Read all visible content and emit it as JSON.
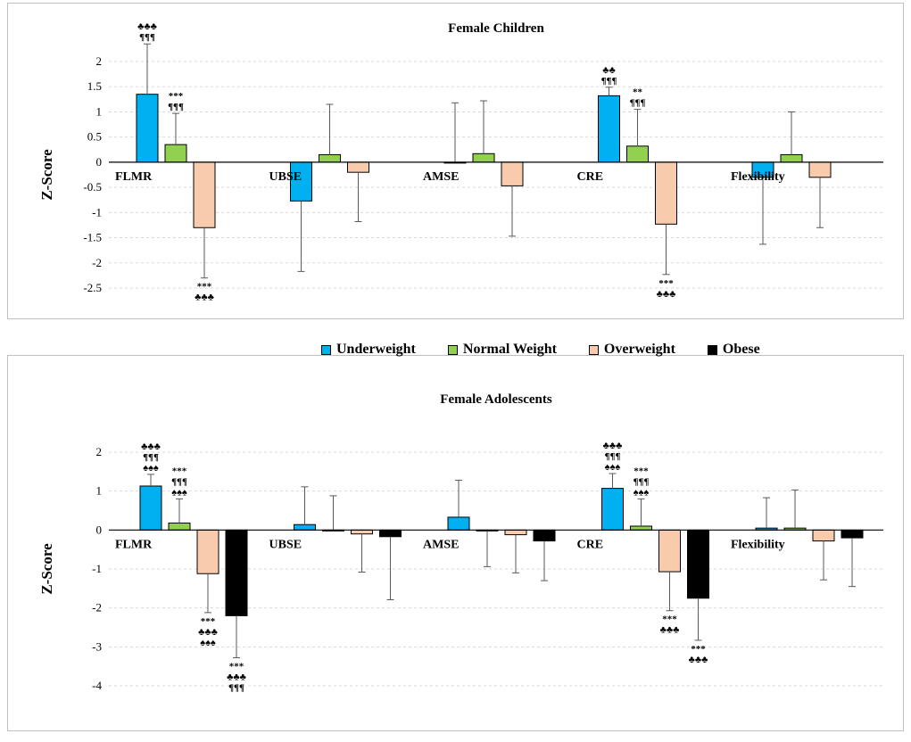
{
  "legend": [
    {
      "name": "Underweight",
      "color": "#00B0F0"
    },
    {
      "name": "Normal Weight",
      "color": "#92D050"
    },
    {
      "name": "Overweight",
      "color": "#F8CBAD"
    },
    {
      "name": "Obese",
      "color": "#000000"
    }
  ],
  "chart_data": [
    {
      "type": "bar",
      "title": "Female Children",
      "ylabel": "Z-Score",
      "xlabel": "",
      "ylim": [
        -2.5,
        2
      ],
      "ticks": [
        "2",
        "1.5",
        "1",
        "0.5",
        "0",
        "-0.5",
        "-1",
        "-1.5",
        "-2",
        "-2.5"
      ],
      "tick_values": [
        2,
        1.5,
        1,
        0.5,
        0,
        -0.5,
        -1,
        -1.5,
        -2,
        -2.5
      ],
      "categories": [
        "FLMR",
        "UBSE",
        "AMSE",
        "CRE",
        "Flexibility"
      ],
      "series": [
        {
          "name": "Underweight",
          "color": "#00B0F0",
          "values": [
            1.35,
            -0.77,
            0.0,
            1.32,
            -0.3
          ],
          "error": [
            1.0,
            1.4,
            1.18,
            0.17,
            1.33
          ]
        },
        {
          "name": "Normal Weight",
          "color": "#92D050",
          "values": [
            0.35,
            0.15,
            0.17,
            0.32,
            0.15
          ],
          "error": [
            0.62,
            1.0,
            1.05,
            0.73,
            0.85
          ]
        },
        {
          "name": "Overweight",
          "color": "#F8CBAD",
          "values": [
            -1.3,
            -0.2,
            -0.47,
            -1.23,
            -0.3
          ],
          "error": [
            1.0,
            0.98,
            1.0,
            1.0,
            1.0
          ]
        }
      ],
      "annotations": [
        {
          "category": 0,
          "series": 0,
          "position": "above",
          "lines": [
            "♣♣♣",
            "¶¶¶"
          ]
        },
        {
          "category": 0,
          "series": 1,
          "position": "above",
          "lines": [
            "***",
            "¶¶¶"
          ]
        },
        {
          "category": 0,
          "series": 2,
          "position": "below",
          "lines": [
            "***",
            "♣♣♣"
          ]
        },
        {
          "category": 3,
          "series": 0,
          "position": "above",
          "lines": [
            "♣♣",
            "¶¶¶"
          ]
        },
        {
          "category": 3,
          "series": 1,
          "position": "above",
          "lines": [
            "**",
            "¶¶¶"
          ]
        },
        {
          "category": 3,
          "series": 2,
          "position": "below",
          "lines": [
            "***",
            "♣♣♣"
          ]
        }
      ]
    },
    {
      "type": "bar",
      "title": "Female Adolescents",
      "ylabel": "Z-Score",
      "xlabel": "",
      "ylim": [
        -4,
        2
      ],
      "ticks": [
        "2",
        "1",
        "0",
        "-1",
        "-2",
        "-3",
        "-4"
      ],
      "tick_values": [
        2,
        1,
        0,
        -1,
        -2,
        -3,
        -4
      ],
      "categories": [
        "FLMR",
        "UBSE",
        "AMSE",
        "CRE",
        "Flexibility"
      ],
      "series": [
        {
          "name": "Underweight",
          "color": "#00B0F0",
          "values": [
            1.13,
            0.14,
            0.33,
            1.07,
            0.05
          ],
          "error": [
            0.3,
            0.97,
            0.95,
            0.38,
            0.78
          ]
        },
        {
          "name": "Normal Weight",
          "color": "#92D050",
          "values": [
            0.18,
            0.0,
            -0.02,
            0.1,
            0.05
          ],
          "error": [
            0.62,
            0.88,
            0.92,
            0.7,
            0.98
          ]
        },
        {
          "name": "Overweight",
          "color": "#F8CBAD",
          "values": [
            -1.12,
            -0.1,
            -0.12,
            -1.07,
            -0.28
          ],
          "error": [
            1.0,
            0.98,
            0.98,
            1.0,
            1.0
          ]
        },
        {
          "name": "Obese",
          "color": "#000000",
          "values": [
            -2.2,
            -0.17,
            -0.28,
            -1.75,
            -0.2
          ],
          "error": [
            1.08,
            1.62,
            1.02,
            1.08,
            1.25
          ]
        }
      ],
      "annotations": [
        {
          "category": 0,
          "series": 0,
          "position": "above",
          "lines": [
            "♣♣♣",
            "¶¶¶",
            "♠♠♠"
          ]
        },
        {
          "category": 0,
          "series": 1,
          "position": "above",
          "lines": [
            "***",
            "¶¶¶",
            "♠♠♠"
          ]
        },
        {
          "category": 0,
          "series": 2,
          "position": "below",
          "lines": [
            "***",
            "♣♣♣",
            "♠♠♠"
          ]
        },
        {
          "category": 0,
          "series": 3,
          "position": "below",
          "lines": [
            "***",
            "♣♣♣",
            "¶¶¶"
          ]
        },
        {
          "category": 3,
          "series": 0,
          "position": "above",
          "lines": [
            "♣♣♣",
            "¶¶¶",
            "♠♠♠"
          ]
        },
        {
          "category": 3,
          "series": 1,
          "position": "above",
          "lines": [
            "***",
            "¶¶¶",
            "♠♠♠"
          ]
        },
        {
          "category": 3,
          "series": 2,
          "position": "below",
          "lines": [
            "***",
            "♣♣♣"
          ]
        },
        {
          "category": 3,
          "series": 3,
          "position": "below",
          "lines": [
            "***",
            "♣♣♣"
          ]
        }
      ]
    }
  ]
}
